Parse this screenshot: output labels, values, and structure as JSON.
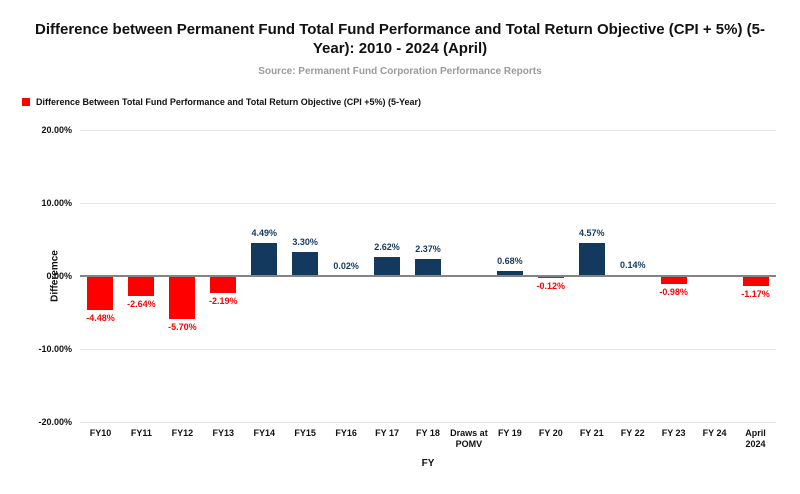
{
  "source": "Source: Permanent Fund Corporation Performance Reports",
  "chart_data": {
    "type": "bar",
    "title": "Difference between Permanent Fund Total Fund Performance and Total Return Objective (CPI + 5%) (5-Year): 2010 - 2024 (April)",
    "subtitle": "Source: Permanent Fund Corporation Performance Reports",
    "xlabel": "FY",
    "ylabel": "Differemce",
    "legend": [
      {
        "label": "Difference Between Total Fund Performance and Total Return Objective (CPI +5%) (5-Year)",
        "color": "#FF0000"
      }
    ],
    "legend_position": "top-left",
    "categories": [
      "FY10",
      "FY11",
      "FY12",
      "FY13",
      "FY14",
      "FY15",
      "FY16",
      "FY 17",
      "FY 18",
      "Draws at POMV",
      "FY 19",
      "FY 20",
      "FY 21",
      "FY 22",
      "FY 23",
      "FY 24",
      "April 2024"
    ],
    "values": [
      -4.48,
      -2.64,
      -5.7,
      -2.19,
      4.49,
      3.3,
      0.02,
      2.62,
      2.37,
      null,
      0.68,
      -0.12,
      4.57,
      0.14,
      -0.98,
      null,
      -1.17
    ],
    "value_labels": [
      "-4.48%",
      "-2.64%",
      "-5.70%",
      "-2.19%",
      "4.49%",
      "3.30%",
      "0.02%",
      "2.62%",
      "2.37%",
      null,
      "0.68%",
      "-0.12%",
      "4.57%",
      "0.14%",
      "-0.98%",
      null,
      "-1.17%"
    ],
    "ylim": [
      -20,
      20
    ],
    "yticks": [
      {
        "value": 20,
        "label": "20.00%"
      },
      {
        "value": 10,
        "label": "10.00%"
      },
      {
        "value": 0,
        "label": "0.00%"
      },
      {
        "value": -10,
        "label": "-10.00%"
      },
      {
        "value": -20,
        "label": "-20.00%"
      }
    ],
    "grid": "horizontal",
    "colors": {
      "positive_bar": "#14395E",
      "negative_bar": "#FF0000",
      "positive_label": "#14395E",
      "negative_label": "#FF0000",
      "gridline": "#E6E6E6",
      "zero_line": "#848484",
      "source_text": "#999999"
    }
  }
}
